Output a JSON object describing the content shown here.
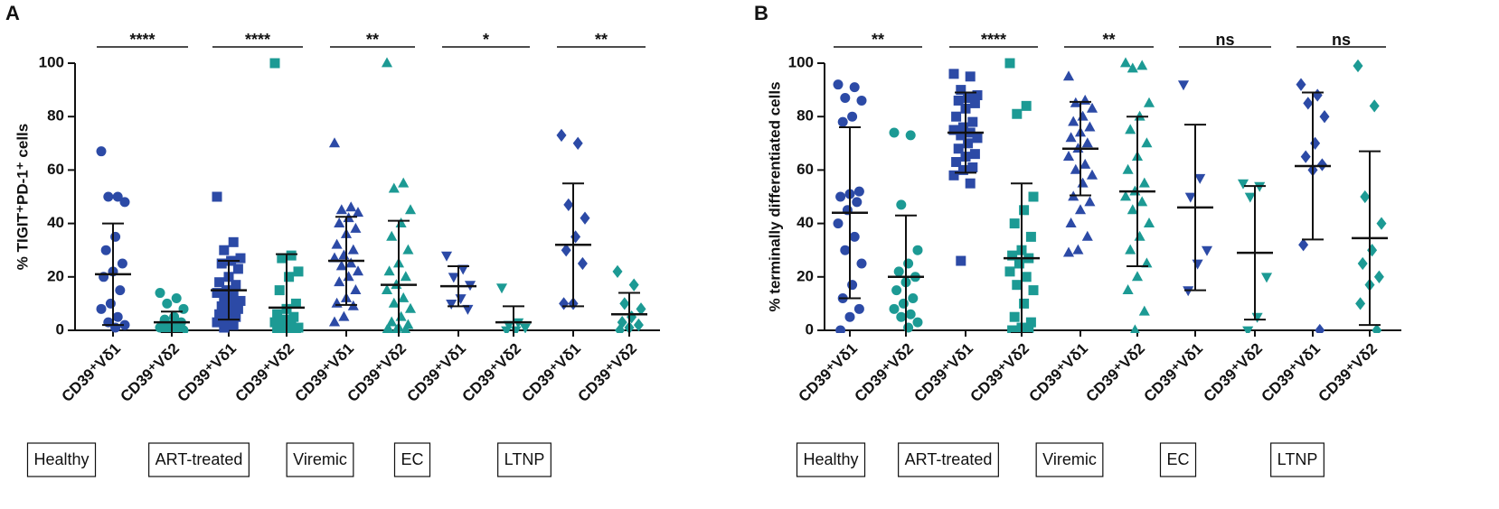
{
  "chart_data": [
    {
      "type": "dot",
      "panel": "A",
      "ylabel": "% TIGIT⁺PD-1⁺ cells",
      "ylim": [
        0,
        100
      ],
      "yticks": [
        0,
        20,
        40,
        60,
        80,
        100
      ],
      "categories": [
        "CD39⁺Vδ1",
        "CD39⁺Vδ2",
        "CD39⁺Vδ1",
        "CD39⁺Vδ2",
        "CD39⁺Vδ1",
        "CD39⁺Vδ2",
        "CD39⁺Vδ1",
        "CD39⁺Vδ2",
        "CD39⁺Vδ1",
        "CD39⁺Vδ2"
      ],
      "groups": [
        {
          "label": "Healthy",
          "marker": "circle",
          "significance": "****",
          "subsets": [
            {
              "color": "#2c4aa6",
              "mean": 21,
              "sd": 19,
              "values": [
                67,
                50,
                50,
                48,
                35,
                30,
                25,
                22,
                20,
                15,
                10,
                8,
                5,
                3,
                2,
                1
              ]
            },
            {
              "color": "#1c9a94",
              "mean": 3,
              "sd": 4,
              "values": [
                14,
                12,
                10,
                8,
                5,
                4,
                3,
                2,
                2,
                1,
                1,
                1,
                0.5,
                0.5,
                0,
                0,
                0
              ]
            }
          ]
        },
        {
          "label": "ART-treated",
          "marker": "square",
          "significance": "****",
          "subsets": [
            {
              "color": "#2c4aa6",
              "mean": 15,
              "sd": 11,
              "values": [
                50,
                33,
                30,
                27,
                26,
                25,
                23,
                20,
                18,
                17,
                15,
                14,
                13,
                12,
                11,
                10,
                9,
                8,
                7,
                6,
                5,
                4,
                3,
                2,
                1
              ]
            },
            {
              "color": "#1c9a94",
              "mean": 8.5,
              "sd": 20,
              "values": [
                100,
                28,
                27,
                22,
                20,
                15,
                10,
                8,
                6,
                5,
                4,
                3,
                2,
                2,
                1,
                1,
                0,
                0,
                0,
                0
              ]
            }
          ]
        },
        {
          "label": "Viremic",
          "marker": "triangle",
          "significance": "**",
          "subsets": [
            {
              "color": "#2c4aa6",
              "mean": 26,
              "sd": 16.5,
              "values": [
                70,
                46,
                45,
                44,
                42,
                40,
                38,
                36,
                32,
                30,
                28,
                27,
                25,
                24,
                22,
                20,
                18,
                15,
                12,
                10,
                9,
                5,
                3
              ]
            },
            {
              "color": "#1c9a94",
              "mean": 17,
              "sd": 24,
              "values": [
                100,
                55,
                53,
                45,
                40,
                35,
                30,
                25,
                22,
                20,
                17,
                15,
                12,
                10,
                8,
                5,
                3,
                2,
                1,
                0,
                0,
                0,
                0
              ]
            }
          ]
        },
        {
          "label": "EC",
          "marker": "triangle-down",
          "significance": "*",
          "subsets": [
            {
              "color": "#2c4aa6",
              "mean": 16.5,
              "sd": 7.5,
              "values": [
                28,
                23,
                20,
                17,
                12,
                10,
                8
              ]
            },
            {
              "color": "#1c9a94",
              "mean": 3,
              "sd": 6,
              "values": [
                16,
                3,
                2,
                1,
                0,
                0
              ]
            }
          ]
        },
        {
          "label": "LTNP",
          "marker": "diamond",
          "significance": "**",
          "subsets": [
            {
              "color": "#2c4aa6",
              "mean": 32,
              "sd": 23,
              "values": [
                73,
                70,
                47,
                42,
                35,
                30,
                25,
                10,
                10
              ]
            },
            {
              "color": "#1c9a94",
              "mean": 6,
              "sd": 8,
              "values": [
                22,
                17,
                10,
                8,
                5,
                3,
                2,
                1,
                0
              ]
            }
          ]
        }
      ]
    },
    {
      "type": "dot",
      "panel": "B",
      "ylabel": "% terminally differentiated cells",
      "ylim": [
        0,
        100
      ],
      "yticks": [
        0,
        20,
        40,
        60,
        80,
        100
      ],
      "categories": [
        "CD39⁺Vδ1",
        "CD39⁺Vδ2",
        "CD39⁺Vδ1",
        "CD39⁺Vδ2",
        "CD39⁺Vδ1",
        "CD39⁺Vδ2",
        "CD39⁺Vδ1",
        "CD39⁺Vδ2",
        "CD39⁺Vδ1",
        "CD39⁺Vδ2"
      ],
      "groups": [
        {
          "label": "Healthy",
          "marker": "circle",
          "significance": "**",
          "subsets": [
            {
              "color": "#2c4aa6",
              "mean": 44,
              "sd": 32,
              "values": [
                92,
                91,
                87,
                86,
                80,
                78,
                52,
                51,
                50,
                48,
                45,
                40,
                35,
                30,
                25,
                17,
                12,
                8,
                5,
                0
              ]
            },
            {
              "color": "#1c9a94",
              "mean": 20,
              "sd": 23,
              "values": [
                74,
                73,
                47,
                30,
                25,
                22,
                20,
                18,
                15,
                12,
                10,
                8,
                6,
                5,
                3,
                1
              ]
            }
          ]
        },
        {
          "label": "ART-treated",
          "marker": "square",
          "significance": "****",
          "subsets": [
            {
              "color": "#2c4aa6",
              "mean": 74,
              "sd": 15,
              "values": [
                96,
                95,
                90,
                88,
                87,
                86,
                85,
                83,
                80,
                78,
                76,
                75,
                74,
                73,
                72,
                70,
                68,
                66,
                65,
                63,
                61,
                60,
                58,
                55,
                26
              ]
            },
            {
              "color": "#1c9a94",
              "mean": 27,
              "sd": 28,
              "values": [
                100,
                84,
                81,
                50,
                45,
                40,
                35,
                30,
                28,
                27,
                25,
                22,
                20,
                17,
                15,
                10,
                5,
                3,
                1,
                0,
                0,
                0
              ]
            }
          ]
        },
        {
          "label": "Viremic",
          "marker": "triangle",
          "significance": "**",
          "subsets": [
            {
              "color": "#2c4aa6",
              "mean": 68,
              "sd": 17.5,
              "values": [
                95,
                86,
                85,
                83,
                80,
                78,
                76,
                74,
                72,
                70,
                68,
                65,
                62,
                60,
                58,
                55,
                50,
                48,
                45,
                40,
                35,
                30,
                29
              ]
            },
            {
              "color": "#1c9a94",
              "mean": 52,
              "sd": 28,
              "values": [
                100,
                99,
                98,
                85,
                80,
                75,
                70,
                65,
                60,
                55,
                52,
                50,
                48,
                45,
                40,
                35,
                30,
                25,
                20,
                15,
                7,
                0
              ]
            }
          ]
        },
        {
          "label": "EC",
          "marker": "triangle-down",
          "significance": "ns",
          "subsets": [
            {
              "color": "#2c4aa6",
              "mean": 46,
              "sd": 31,
              "values": [
                92,
                57,
                50,
                30,
                25,
                15
              ]
            },
            {
              "color": "#1c9a94",
              "mean": 29,
              "sd": 25,
              "values": [
                55,
                54,
                50,
                20,
                5,
                0
              ]
            }
          ]
        },
        {
          "label": "LTNP",
          "marker": "diamond",
          "significance": "ns",
          "subsets": [
            {
              "color": "#2c4aa6",
              "mean": 61.5,
              "sd": 27.5,
              "values": [
                92,
                88,
                85,
                80,
                70,
                65,
                62,
                60,
                32,
                0
              ]
            },
            {
              "color": "#1c9a94",
              "mean": 34.5,
              "sd": 32.5,
              "values": [
                99,
                84,
                50,
                40,
                30,
                25,
                20,
                17,
                10,
                0
              ]
            }
          ]
        }
      ]
    }
  ]
}
